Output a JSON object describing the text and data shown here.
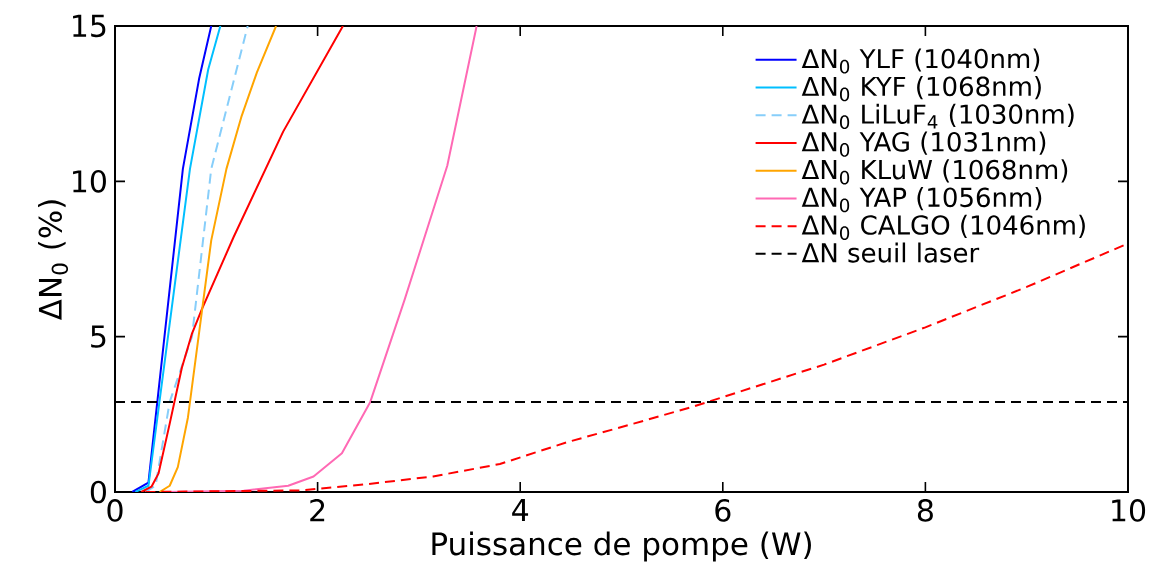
{
  "chart_data": {
    "type": "line",
    "xlabel": "Puissance de pompe (W)",
    "ylabel": "ΔN$_{0}$ (%)",
    "xlim": [
      0,
      10
    ],
    "ylim": [
      0,
      15
    ],
    "xticks": [
      0,
      2,
      4,
      6,
      8,
      10
    ],
    "yticks": [
      0,
      5,
      10,
      15
    ],
    "grid": false,
    "legend": "top right",
    "marker": "none",
    "series": [
      {
        "name": "ΔN$_{0}$ YLF (1040nm)",
        "color": "#0000ff",
        "line_style": "solid",
        "x": [
          0.17,
          0.33,
          0.67,
          0.83,
          0.95
        ],
        "values": [
          0,
          0.3,
          10.4,
          13.3,
          15
        ]
      },
      {
        "name": "ΔN$_{0}$ KYF (1068nm)",
        "color": "#00bfff",
        "line_style": "solid",
        "x": [
          0.2,
          0.33,
          0.74,
          0.92,
          1.04
        ],
        "values": [
          0,
          0.2,
          10.4,
          13.6,
          15
        ]
      },
      {
        "name": "ΔN$_{0}$ LiLuF$_{4}$ (1030nm)",
        "color": "#87cefa",
        "line_style": "dashed",
        "x": [
          0.3,
          0.4,
          0.54,
          0.76,
          0.95,
          1.31
        ],
        "values": [
          0,
          0.2,
          2.9,
          5,
          10.4,
          15
        ]
      },
      {
        "name": "ΔN$_{0}$ YAG (1031nm)",
        "color": "#ff0000",
        "line_style": "solid",
        "x": [
          0.26,
          0.36,
          0.43,
          0.54,
          0.66,
          0.76,
          0.86,
          1.17,
          1.66,
          2.25
        ],
        "values": [
          0,
          0.17,
          0.6,
          2.2,
          4,
          5.1,
          5.9,
          8.2,
          11.6,
          15
        ]
      },
      {
        "name": "ΔN$_{0}$ KLuW (1068nm)",
        "color": "#ffa500",
        "line_style": "solid",
        "x": [
          0.44,
          0.54,
          0.62,
          0.72,
          0.95,
          1.1,
          1.25,
          1.4,
          1.59
        ],
        "values": [
          0,
          0.2,
          0.8,
          2.4,
          8.1,
          10.4,
          12.1,
          13.5,
          15
        ]
      },
      {
        "name": "ΔN$_{0}$ YAP (1056nm)",
        "color": "#ff69b4",
        "line_style": "solid",
        "x": [
          0.5,
          1.27,
          1.71,
          1.96,
          2.24,
          2.52,
          2.86,
          3.28,
          3.57
        ],
        "values": [
          0,
          0.04,
          0.2,
          0.5,
          1.25,
          2.9,
          6.2,
          10.5,
          15
        ]
      },
      {
        "name": "ΔN$_{0}$ CALGO (1046nm)",
        "color": "#ff0000",
        "line_style": "dashed",
        "x": [
          0.3,
          1.83,
          2.48,
          3.14,
          3.8,
          4.46,
          5.12,
          5.71,
          7,
          8,
          9,
          10
        ],
        "values": [
          0,
          0.05,
          0.25,
          0.5,
          0.9,
          1.6,
          2.2,
          2.75,
          4.1,
          5.3,
          6.6,
          8
        ]
      }
    ],
    "ref_lines": [
      {
        "axis": "y",
        "value": 2.9,
        "label": "ΔN seuil laser",
        "color": "#000000",
        "line_style": "dashed"
      }
    ]
  }
}
